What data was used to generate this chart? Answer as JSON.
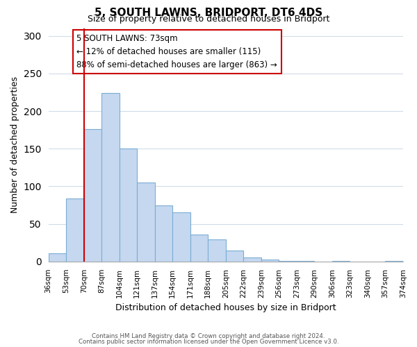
{
  "title": "5, SOUTH LAWNS, BRIDPORT, DT6 4DS",
  "subtitle": "Size of property relative to detached houses in Bridport",
  "xlabel": "Distribution of detached houses by size in Bridport",
  "ylabel": "Number of detached properties",
  "bin_labels": [
    "36sqm",
    "53sqm",
    "70sqm",
    "87sqm",
    "104sqm",
    "121sqm",
    "137sqm",
    "154sqm",
    "171sqm",
    "188sqm",
    "205sqm",
    "222sqm",
    "239sqm",
    "256sqm",
    "273sqm",
    "290sqm",
    "306sqm",
    "323sqm",
    "340sqm",
    "357sqm",
    "374sqm"
  ],
  "bar_heights": [
    11,
    84,
    176,
    224,
    150,
    105,
    75,
    65,
    36,
    29,
    15,
    5,
    3,
    1,
    1,
    0,
    1,
    0,
    0,
    1
  ],
  "bar_color": "#c5d8f0",
  "bar_edge_color": "#7aadd4",
  "ylim": [
    0,
    310
  ],
  "yticks": [
    0,
    50,
    100,
    150,
    200,
    250,
    300
  ],
  "property_line_x": 2,
  "property_line_color": "#cc0000",
  "annotation_title": "5 SOUTH LAWNS: 73sqm",
  "annotation_line1": "← 12% of detached houses are smaller (115)",
  "annotation_line2": "88% of semi-detached houses are larger (863) →",
  "footer_line1": "Contains HM Land Registry data © Crown copyright and database right 2024.",
  "footer_line2": "Contains public sector information licensed under the Open Government Licence v3.0.",
  "background_color": "#ffffff",
  "grid_color": "#d0dce8"
}
